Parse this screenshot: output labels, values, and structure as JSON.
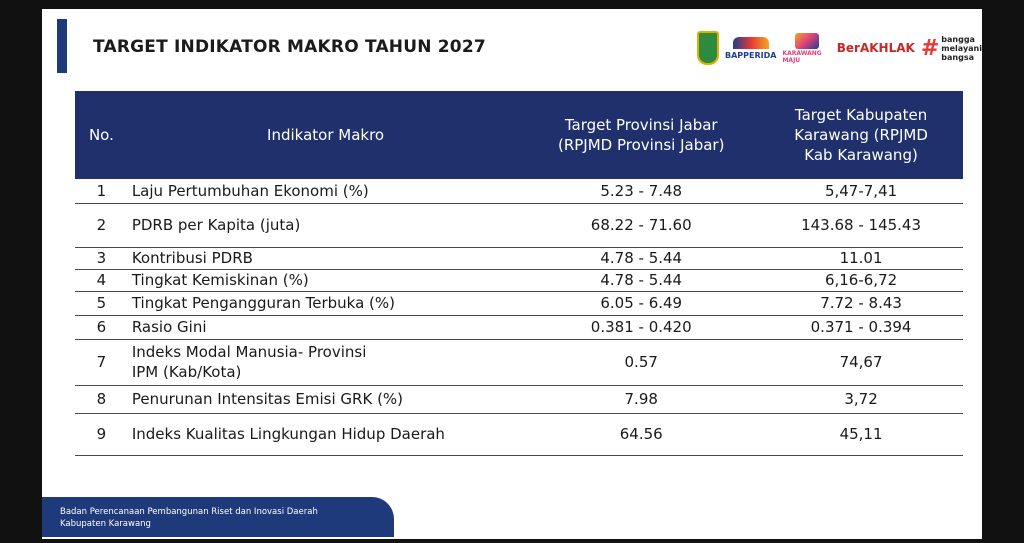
{
  "header": {
    "title": "TARGET INDIKATOR MAKRO TAHUN 2027",
    "logos": {
      "bapperida": "BAPPERIDA",
      "karawang": "KARAWANG MAJU",
      "berakhlak": "BerAKHLAK",
      "bangga_line1": "bangga",
      "bangga_line2": "melayani",
      "bangga_line3": "bangsa"
    }
  },
  "table": {
    "columns": {
      "no": "No.",
      "indikator": "Indikator Makro",
      "provinsi_line1": "Target Provinsi Jabar",
      "provinsi_line2": "(RPJMD Provinsi Jabar)",
      "kabupaten_line1": "Target Kabupaten",
      "kabupaten_line2": "Karawang (RPJMD",
      "kabupaten_line3": "Kab Karawang)"
    },
    "rows": [
      {
        "no": "1",
        "indikator": "Laju Pertumbuhan Ekonomi (%)",
        "indikator2": "",
        "provinsi": "5.23 - 7.48",
        "kabupaten": "5,47-7,41"
      },
      {
        "no": "2",
        "indikator": "PDRB per Kapita (juta)",
        "indikator2": "",
        "provinsi": "68.22 - 71.60",
        "kabupaten": "143.68 - 145.43"
      },
      {
        "no": "3",
        "indikator": "Kontribusi PDRB",
        "indikator2": "",
        "provinsi": "4.78 - 5.44",
        "kabupaten": "11.01"
      },
      {
        "no": "4",
        "indikator": "Tingkat Kemiskinan (%)",
        "indikator2": "",
        "provinsi": "4.78 - 5.44",
        "kabupaten": "6,16-6,72"
      },
      {
        "no": "5",
        "indikator": "Tingkat Pengangguran Terbuka (%)",
        "indikator2": "",
        "provinsi": "6.05 - 6.49",
        "kabupaten": "7.72 - 8.43"
      },
      {
        "no": "6",
        "indikator": "Rasio Gini",
        "indikator2": "",
        "provinsi": "0.381 - 0.420",
        "kabupaten": "0.371 - 0.394"
      },
      {
        "no": "7",
        "indikator": "Indeks Modal Manusia- Provinsi",
        "indikator2": "IPM (Kab/Kota)",
        "provinsi": "0.57",
        "kabupaten": "74,67"
      },
      {
        "no": "8",
        "indikator": "Penurunan Intensitas Emisi GRK (%)",
        "indikator2": "",
        "provinsi": "7.98",
        "kabupaten": "3,72"
      },
      {
        "no": "9",
        "indikator": "Indeks Kualitas Lingkungan Hidup Daerah",
        "indikator2": "",
        "provinsi": "64.56",
        "kabupaten": "45,11"
      }
    ]
  },
  "footer": {
    "line1": "Badan Perencanaan Pembangunan Riset dan Inovasi Daerah",
    "line2": "Kabupaten Karawang"
  }
}
